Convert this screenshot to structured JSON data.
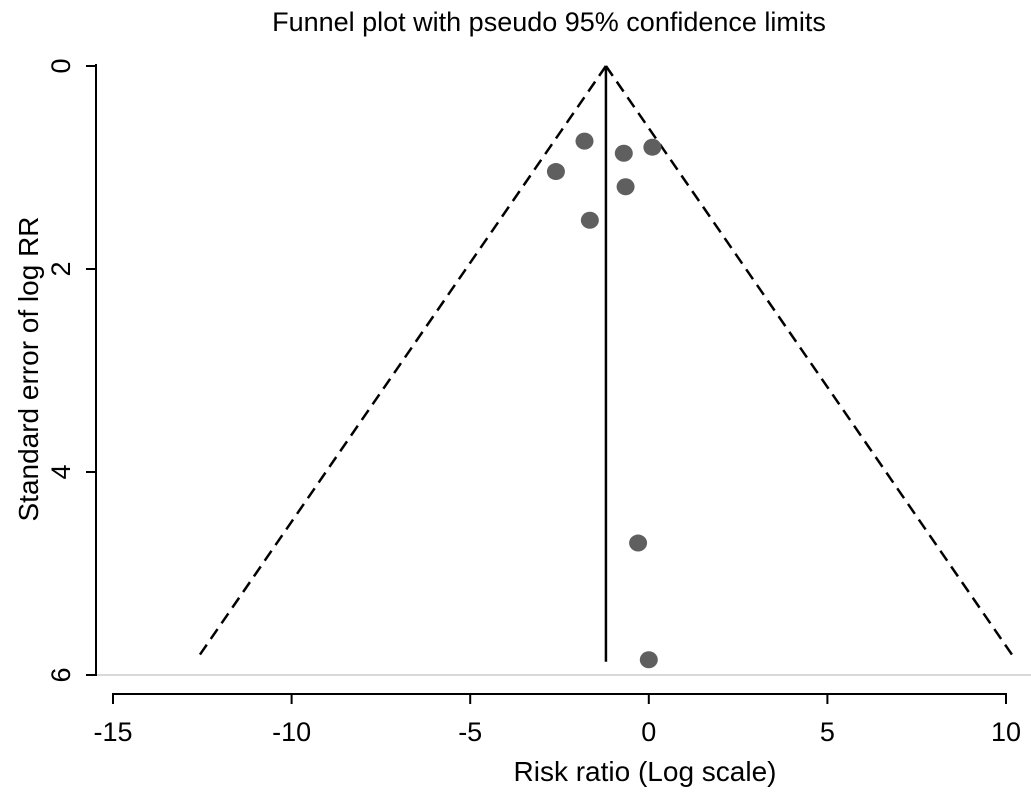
{
  "chart_data": {
    "type": "scatter",
    "title": "Funnel plot with pseudo 95% confidence limits",
    "xlabel": "Risk ratio (Log scale)",
    "ylabel": "Standard error of log RR",
    "xlim": [
      -15.5,
      10.3
    ],
    "ylim": [
      0,
      6
    ],
    "y_reversed": true,
    "x_ticks": [
      -15,
      -10,
      -5,
      0,
      5,
      10
    ],
    "x_tick_labels": [
      "-15",
      "-10",
      "-5",
      "0",
      "5",
      "10"
    ],
    "y_ticks": [
      0,
      2,
      4,
      6
    ],
    "y_tick_labels": [
      "0",
      "2",
      "4",
      "6"
    ],
    "grid": false,
    "pooled_estimate": -1.2,
    "confidence_limits": "pseudo 95%",
    "points": [
      {
        "x": -1.8,
        "y": 0.74
      },
      {
        "x": 0.1,
        "y": 0.8
      },
      {
        "x": -0.7,
        "y": 0.86
      },
      {
        "x": -2.6,
        "y": 1.04
      },
      {
        "x": -0.65,
        "y": 1.19
      },
      {
        "x": -1.65,
        "y": 1.52
      },
      {
        "x": -0.3,
        "y": 4.7
      },
      {
        "x": 0.0,
        "y": 5.85
      }
    ],
    "colors": {
      "points": "#5f5f5f",
      "lines": "#000000",
      "baseline": "#d9d9d9"
    }
  }
}
